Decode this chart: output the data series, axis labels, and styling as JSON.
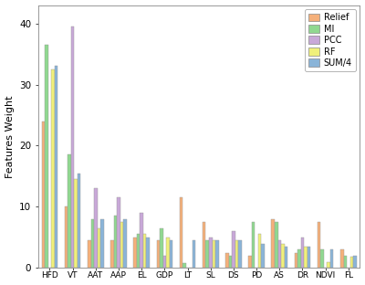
{
  "categories": [
    "HFD",
    "VT",
    "AAT",
    "AAP",
    "EL",
    "GDP",
    "LT",
    "SL",
    "DS",
    "PD",
    "AS",
    "DR",
    "NDVI",
    "FL"
  ],
  "series": {
    "Relief": [
      24.0,
      10.0,
      4.5,
      4.5,
      5.0,
      4.5,
      11.5,
      7.5,
      2.5,
      2.0,
      8.0,
      2.5,
      7.5,
      3.0
    ],
    "MI": [
      36.5,
      18.5,
      8.0,
      8.5,
      5.5,
      6.5,
      0.8,
      4.5,
      2.0,
      7.5,
      7.5,
      3.0,
      3.0,
      2.0
    ],
    "PCC": [
      0.0,
      39.5,
      13.0,
      11.5,
      9.0,
      2.0,
      0.0,
      5.0,
      6.0,
      0.0,
      4.5,
      5.0,
      0.0,
      0.0
    ],
    "RF": [
      32.5,
      14.5,
      6.5,
      7.5,
      5.5,
      5.0,
      0.0,
      4.5,
      4.5,
      5.5,
      4.0,
      3.5,
      1.0,
      1.8
    ],
    "SUM/4": [
      33.0,
      15.5,
      8.0,
      8.0,
      5.0,
      4.5,
      4.5,
      4.5,
      4.5,
      4.0,
      3.5,
      3.5,
      3.0,
      2.0
    ]
  },
  "colors": {
    "Relief": "#F5B07A",
    "MI": "#90D890",
    "PCC": "#C8A8D8",
    "RF": "#F0F07A",
    "SUM/4": "#8AB4D8"
  },
  "ylabel": "Features Weight",
  "ylim": [
    0,
    43
  ],
  "yticks": [
    0,
    10,
    20,
    30,
    40
  ],
  "legend_order": [
    "Relief",
    "MI",
    "PCC",
    "RF",
    "SUM/4"
  ],
  "bar_width": 0.14,
  "figsize": [
    4.0,
    3.12
  ],
  "dpi": 100,
  "edge_color": "#999999",
  "edge_width": 0.3
}
